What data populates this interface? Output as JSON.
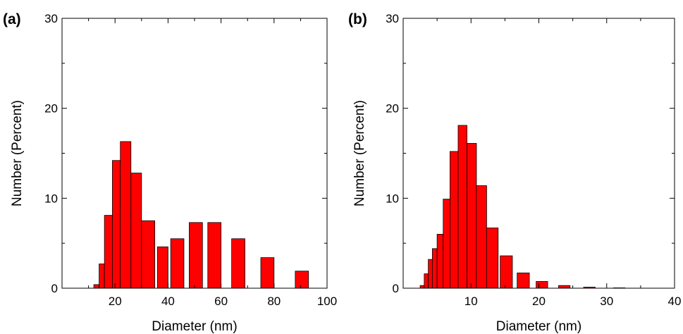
{
  "chart_data": [
    {
      "type": "bar",
      "panel_label": "(a)",
      "xlabel": "Diameter (nm)",
      "ylabel": "Number (Percent)",
      "xlim": [
        0,
        100
      ],
      "ylim": [
        0,
        30
      ],
      "xticks": [
        20,
        40,
        60,
        80,
        100
      ],
      "yticks": [
        0,
        10,
        20,
        30
      ],
      "grid": false,
      "bar_color": "#ff0000",
      "bins": [
        {
          "x0": 12,
          "x1": 14,
          "value": 0.4
        },
        {
          "x0": 14,
          "x1": 16,
          "value": 2.7
        },
        {
          "x0": 16,
          "x1": 19,
          "value": 8.1
        },
        {
          "x0": 19,
          "x1": 22,
          "value": 14.2
        },
        {
          "x0": 22,
          "x1": 26,
          "value": 16.3
        },
        {
          "x0": 26,
          "x1": 30,
          "value": 12.8
        },
        {
          "x0": 30,
          "x1": 35,
          "value": 7.5
        },
        {
          "x0": 36,
          "x1": 40,
          "value": 4.6
        },
        {
          "x0": 41,
          "x1": 46,
          "value": 5.5
        },
        {
          "x0": 48,
          "x1": 53,
          "value": 7.3
        },
        {
          "x0": 55,
          "x1": 60,
          "value": 7.3
        },
        {
          "x0": 64,
          "x1": 69,
          "value": 5.5
        },
        {
          "x0": 75,
          "x1": 80,
          "value": 3.4
        },
        {
          "x0": 88,
          "x1": 93,
          "value": 1.9
        }
      ]
    },
    {
      "type": "bar",
      "panel_label": "(b)",
      "xlabel": "Diameter (nm)",
      "ylabel": "Number (Percent)",
      "xlim": [
        0,
        40
      ],
      "ylim": [
        0,
        30
      ],
      "xticks": [
        10,
        20,
        30,
        40
      ],
      "yticks": [
        0,
        10,
        20,
        30
      ],
      "grid": false,
      "bar_color": "#ff0000",
      "bins": [
        {
          "x0": 2.5,
          "x1": 3.1,
          "value": 0.3
        },
        {
          "x0": 3.1,
          "x1": 3.7,
          "value": 1.6
        },
        {
          "x0": 3.7,
          "x1": 4.3,
          "value": 3.2
        },
        {
          "x0": 4.3,
          "x1": 5.0,
          "value": 4.4
        },
        {
          "x0": 5.0,
          "x1": 5.9,
          "value": 6.0
        },
        {
          "x0": 5.9,
          "x1": 6.9,
          "value": 9.9
        },
        {
          "x0": 6.9,
          "x1": 8.1,
          "value": 15.2
        },
        {
          "x0": 8.1,
          "x1": 9.4,
          "value": 18.1
        },
        {
          "x0": 9.4,
          "x1": 10.8,
          "value": 16.1
        },
        {
          "x0": 10.8,
          "x1": 12.3,
          "value": 11.4
        },
        {
          "x0": 12.3,
          "x1": 14.0,
          "value": 6.7
        },
        {
          "x0": 14.3,
          "x1": 16.1,
          "value": 3.6
        },
        {
          "x0": 16.8,
          "x1": 18.6,
          "value": 1.7
        },
        {
          "x0": 19.6,
          "x1": 21.3,
          "value": 0.75
        },
        {
          "x0": 22.9,
          "x1": 24.6,
          "value": 0.3
        },
        {
          "x0": 26.6,
          "x1": 28.3,
          "value": 0.12
        },
        {
          "x0": 31.0,
          "x1": 32.7,
          "value": 0.04
        }
      ]
    }
  ]
}
